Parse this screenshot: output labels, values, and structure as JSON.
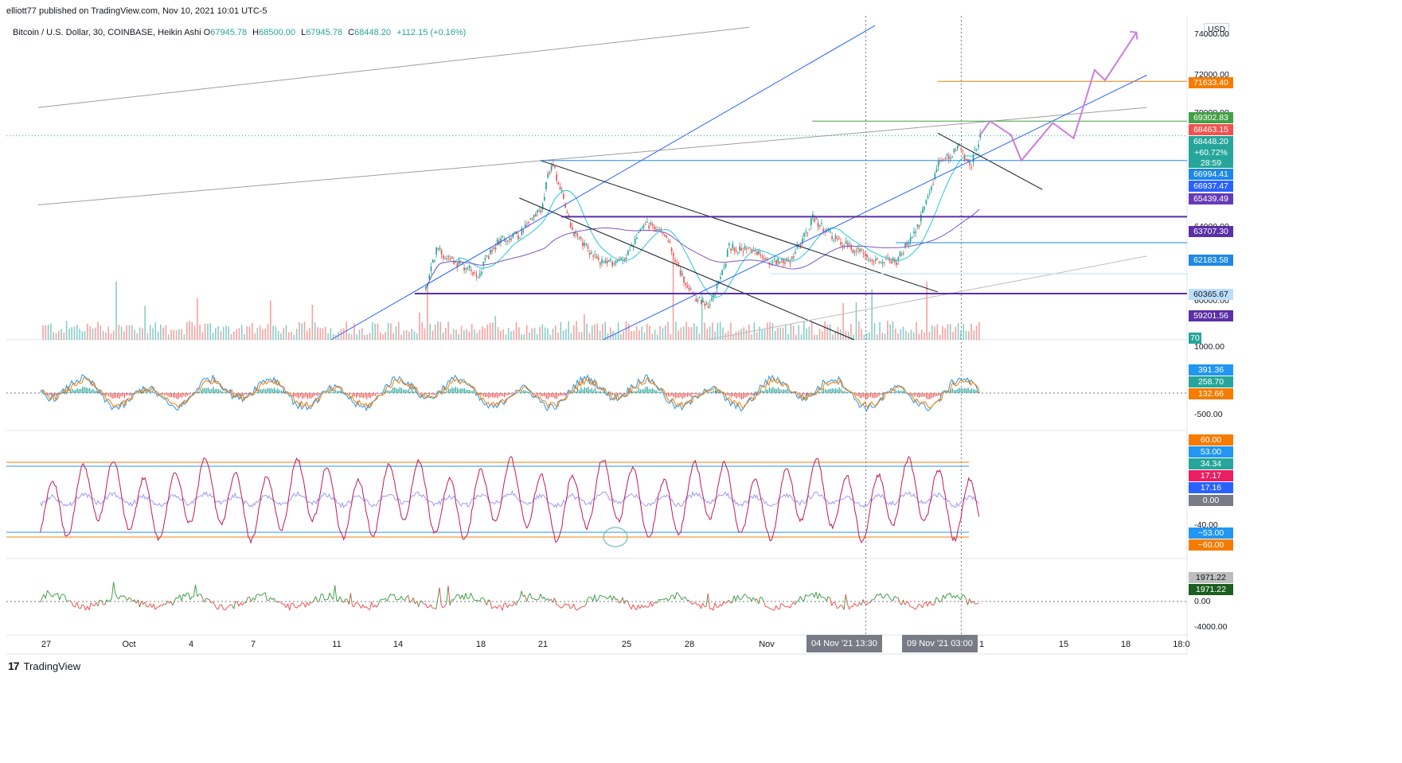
{
  "header": {
    "text": "elliott77 published on TradingView.com, Nov 10, 2021 10:01 UTC-5"
  },
  "legend": {
    "symbol": "Bitcoin / U.S. Dollar, 30, COINBASE, Heikin Ashi",
    "o_label": "O",
    "o": "67945.78",
    "h_label": "H",
    "h": "68500.00",
    "l_label": "L",
    "l": "67945.78",
    "c_label": "C",
    "c": "68448.20",
    "change": "+112.15 (+0.16%)"
  },
  "currency": "USD",
  "colors": {
    "up": "#26a69a",
    "down": "#ef5350",
    "blue": "#2962ff",
    "purple": "#5b2fa6",
    "orange": "#f57c00",
    "green": "#43a047",
    "gray": "#9e9e9e",
    "violet": "#ce7cde"
  },
  "price_axis": {
    "ticks": [
      "74000.00",
      "72000.00",
      "70000.00",
      "64000.00",
      "60000.00"
    ],
    "badges": [
      {
        "text": "71633.40",
        "color": "#f57c00"
      },
      {
        "text": "69302.83",
        "color": "#43a047"
      },
      {
        "text": "68463.15",
        "color": "#ef5350"
      },
      {
        "text": "68448.20",
        "color": "#26a69a"
      },
      {
        "text": "+60.72%",
        "color": "#26a69a"
      },
      {
        "text": "28:59",
        "color": "#26a69a"
      },
      {
        "text": "66994.41",
        "color": "#1e88e5"
      },
      {
        "text": "66937.47",
        "color": "#2962ff"
      },
      {
        "text": "65439.49",
        "color": "#673ab7"
      },
      {
        "text": "63707.30",
        "color": "#5b2fa6"
      },
      {
        "text": "62183.58",
        "color": "#1e88e5"
      },
      {
        "text": "60365.67",
        "color": "#bbdefb"
      },
      {
        "text": "59201.56",
        "color": "#5b2fa6"
      },
      {
        "text": "70",
        "color": "#26a69a"
      }
    ]
  },
  "osc1_axis": {
    "ticks": [
      "1000.00",
      "-500.00"
    ],
    "badges": [
      {
        "text": "391.36",
        "color": "#2196f3"
      },
      {
        "text": "258.70",
        "color": "#26a69a"
      },
      {
        "text": "132.66",
        "color": "#f57c00"
      }
    ]
  },
  "osc2_axis": {
    "ticks": [
      "-40.00"
    ],
    "badges": [
      {
        "text": "60.00",
        "color": "#f57c00"
      },
      {
        "text": "53.00",
        "color": "#2196f3"
      },
      {
        "text": "34.34",
        "color": "#26a69a"
      },
      {
        "text": "17.17",
        "color": "#e91e63"
      },
      {
        "text": "17.16",
        "color": "#2962ff"
      },
      {
        "text": "0.00",
        "color": "#787b86"
      },
      {
        "text": "−53.00",
        "color": "#2196f3"
      },
      {
        "text": "−60.00",
        "color": "#f57c00"
      }
    ]
  },
  "osc3_axis": {
    "ticks": [
      "0.00",
      "-4000.00"
    ],
    "badges": [
      {
        "text": "1971.22",
        "color": "#bdbdbd"
      },
      {
        "text": "1971.22",
        "color": "#1b5e20"
      }
    ]
  },
  "time_axis": {
    "labels": [
      "27",
      "Oct",
      "4",
      "7",
      "11",
      "14",
      "18",
      "21",
      "25",
      "28",
      "Nov",
      "15",
      "18",
      "18:0"
    ],
    "highlights": [
      "04 Nov '21   13:30",
      "09 Nov '21   03:00"
    ],
    "highlight_tail": "1"
  },
  "footer": {
    "logo": "17",
    "brand": "TradingView"
  },
  "chart_data": {
    "type": "line",
    "title": "Bitcoin / U.S. Dollar, 30, COINBASE, Heikin Ashi",
    "x_range": [
      "2021-09-26",
      "2021-11-19"
    ],
    "ylim": [
      56500,
      75000
    ],
    "price_path": {
      "name": "BTCUSD",
      "points": [
        [
          "2021-09-26",
          42000
        ],
        [
          "2021-10-14",
          57000
        ],
        [
          "2021-10-15",
          61800
        ],
        [
          "2021-10-16",
          61000
        ],
        [
          "2021-10-17",
          60400
        ],
        [
          "2021-10-18",
          62300
        ],
        [
          "2021-10-19",
          62700
        ],
        [
          "2021-10-20",
          64200
        ],
        [
          "2021-10-20T12:00",
          66900
        ],
        [
          "2021-10-21",
          65200
        ],
        [
          "2021-10-21T12:00",
          62800
        ],
        [
          "2021-10-22",
          62100
        ],
        [
          "2021-10-23",
          60900
        ],
        [
          "2021-10-24",
          61300
        ],
        [
          "2021-10-25",
          63300
        ],
        [
          "2021-10-26",
          62700
        ],
        [
          "2021-10-27",
          59400
        ],
        [
          "2021-10-28",
          58300
        ],
        [
          "2021-10-28T12:00",
          59800
        ],
        [
          "2021-10-29",
          61900
        ],
        [
          "2021-10-30",
          61700
        ],
        [
          "2021-10-31",
          61100
        ],
        [
          "2021-11-01",
          61200
        ],
        [
          "2021-11-02",
          63600
        ],
        [
          "2021-11-03",
          62400
        ],
        [
          "2021-11-04",
          61800
        ],
        [
          "2021-11-05",
          61200
        ],
        [
          "2021-11-06",
          61100
        ],
        [
          "2021-11-07",
          63000
        ],
        [
          "2021-11-08",
          66800
        ],
        [
          "2021-11-09",
          67800
        ],
        [
          "2021-11-09T12:00",
          66500
        ],
        [
          "2021-11-10",
          68448.2
        ]
      ]
    },
    "horizontal_levels": [
      71633.4,
      69302.83,
      66994.41,
      63707.3,
      62183.58,
      60365.67,
      59201.56
    ],
    "projection": {
      "name": "projection",
      "points": [
        [
          "2021-11-10",
          68448
        ],
        [
          "2021-11-10T12:00",
          69300
        ],
        [
          "2021-11-11T12:00",
          68500
        ],
        [
          "2021-11-12",
          67000
        ],
        [
          "2021-11-13T12:00",
          69200
        ],
        [
          "2021-11-14T12:00",
          68300
        ],
        [
          "2021-11-15T12:00",
          72300
        ],
        [
          "2021-11-16",
          71700
        ],
        [
          "2021-11-17T12:00",
          74500
        ]
      ]
    },
    "trendlines": [
      {
        "from": [
          "2021-09-26",
          70100
        ],
        "to": [
          "2021-10-30",
          74800
        ]
      },
      {
        "from": [
          "2021-09-26",
          64400
        ],
        "to": [
          "2021-11-18",
          70100
        ]
      },
      {
        "from": [
          "2021-10-10",
          56500
        ],
        "to": [
          "2021-11-05",
          74900
        ]
      },
      {
        "from": [
          "2021-10-23",
          56500
        ],
        "to": [
          "2021-11-18",
          72000
        ]
      },
      {
        "from": [
          "2021-10-19",
          64800
        ],
        "to": [
          "2021-11-04",
          56500
        ]
      },
      {
        "from": [
          "2021-10-20",
          67000
        ],
        "to": [
          "2021-11-08",
          59300
        ]
      },
      {
        "from": [
          "2021-11-08",
          68600
        ],
        "to": [
          "2021-11-13",
          65300
        ]
      },
      {
        "from": [
          "2021-10-28",
          56500
        ],
        "to": [
          "2021-11-18",
          61400
        ]
      }
    ]
  }
}
